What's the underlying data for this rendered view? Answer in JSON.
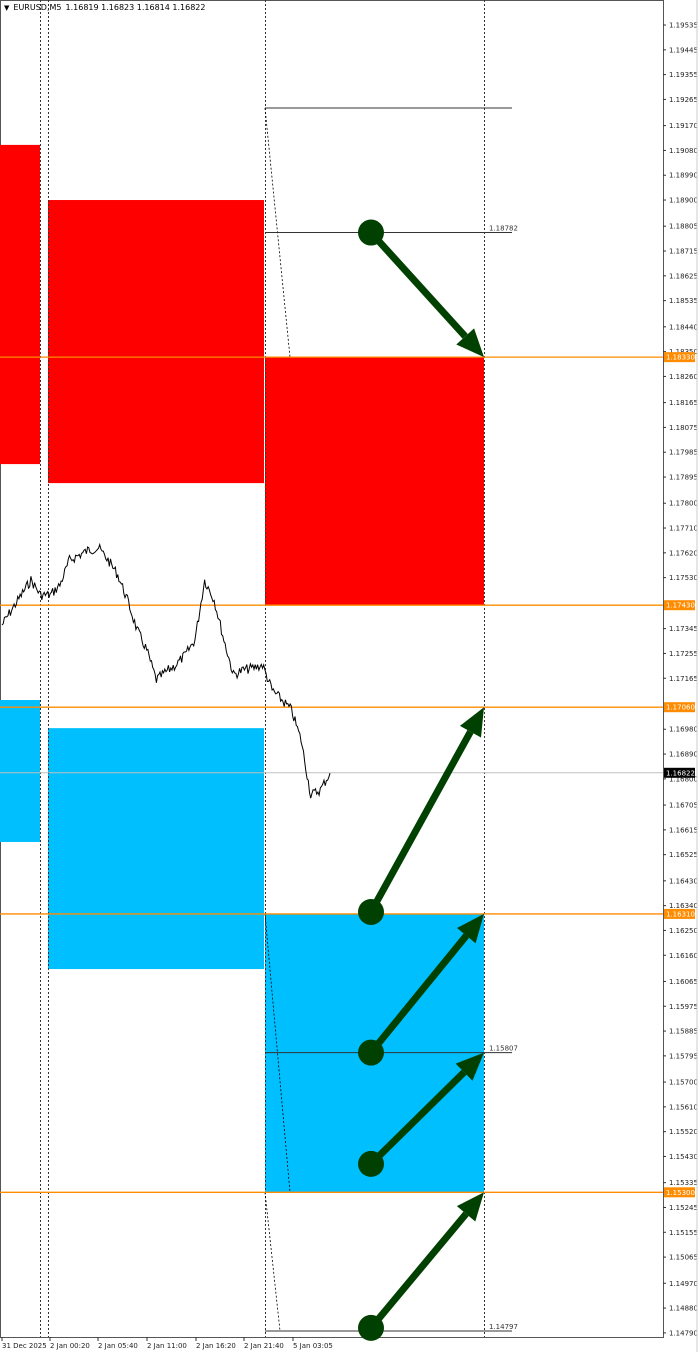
{
  "header": {
    "symbol": "EURUSD,M5",
    "quote": "1.16819 1.16823 1.16814 1.16822",
    "menu_icon": "triangle-down-icon"
  },
  "chart_data": {
    "type": "line",
    "title": "",
    "ylim": [
      1.1475,
      1.1962
    ],
    "grid": false,
    "y_ticks": [
      "1.19535",
      "1.19445",
      "1.19355",
      "1.19265",
      "1.19170",
      "1.19080",
      "1.18990",
      "1.18900",
      "1.18805",
      "1.18715",
      "1.18625",
      "1.18535",
      "1.18440",
      "1.18350",
      "1.18260",
      "1.18165",
      "1.18075",
      "1.17985",
      "1.17895",
      "1.17800",
      "1.17710",
      "1.17620",
      "1.17530",
      "1.17345",
      "1.17255",
      "1.17165",
      "1.16980",
      "1.16890",
      "1.16800",
      "1.16705",
      "1.16615",
      "1.16525",
      "1.16430",
      "1.16340",
      "1.16250",
      "1.16160",
      "1.16065",
      "1.15975",
      "1.15885",
      "1.15795",
      "1.15700",
      "1.15610",
      "1.15520",
      "1.15430",
      "1.15335",
      "1.15245",
      "1.15155",
      "1.15065",
      "1.14970",
      "1.14880",
      "1.14790"
    ],
    "x_ticks": [
      "31 Dec 2025",
      "2 Jan 00:20",
      "2 Jan 05:40",
      "2 Jan 11:00",
      "2 Jan 16:20",
      "2 Jan 21:40",
      "5 Jan 03:05"
    ],
    "price_series": [
      1.17358,
      1.17413,
      1.17467,
      1.17521,
      1.17467,
      1.17467,
      1.17503,
      1.17594,
      1.17612,
      1.1763,
      1.17638,
      1.17594,
      1.1754,
      1.17449,
      1.1734,
      1.17267,
      1.17159,
      1.17188,
      1.17213,
      1.17249,
      1.17304,
      1.17521,
      1.17449,
      1.17304,
      1.17177,
      1.17195,
      1.17202,
      1.17213,
      1.17122,
      1.17086,
      1.1705,
      1.16941,
      1.16741,
      1.1676,
      1.16821
    ],
    "current_price": "1.16822",
    "colors": {
      "supply": "#ff0000",
      "demand": "#00bfff",
      "level": "#ff8c00",
      "arrow": "#004000"
    },
    "zones": [
      {
        "kind": "supply",
        "top": 1.191,
        "bottom": 1.17942
      },
      {
        "kind": "supply",
        "top": 1.189,
        "bottom": 1.17873
      },
      {
        "kind": "supply",
        "top": 1.1833,
        "bottom": 1.1743
      },
      {
        "kind": "demand",
        "top": 1.17086,
        "bottom": 1.16571
      },
      {
        "kind": "demand",
        "top": 1.16984,
        "bottom": 1.1611
      },
      {
        "kind": "demand",
        "top": 1.1631,
        "bottom": 1.153
      }
    ],
    "levels": [
      "1.18330",
      "1.17430",
      "1.17060",
      "1.16310",
      "1.15300"
    ],
    "target_lines": [
      {
        "price": 1.19234,
        "label": ""
      },
      {
        "price": 1.18782,
        "label": "1.18782"
      },
      {
        "price": 1.15807,
        "label": "1.15807"
      },
      {
        "price": 1.14797,
        "label": "1.14797"
      }
    ],
    "arrows": [
      {
        "from": 1.18782,
        "to": 1.1833
      },
      {
        "from": 1.16317,
        "to": 1.1706
      },
      {
        "from": 1.15807,
        "to": 1.1631
      },
      {
        "from": 1.15403,
        "to": 1.15807
      },
      {
        "from": 1.14808,
        "to": 1.153
      }
    ]
  }
}
